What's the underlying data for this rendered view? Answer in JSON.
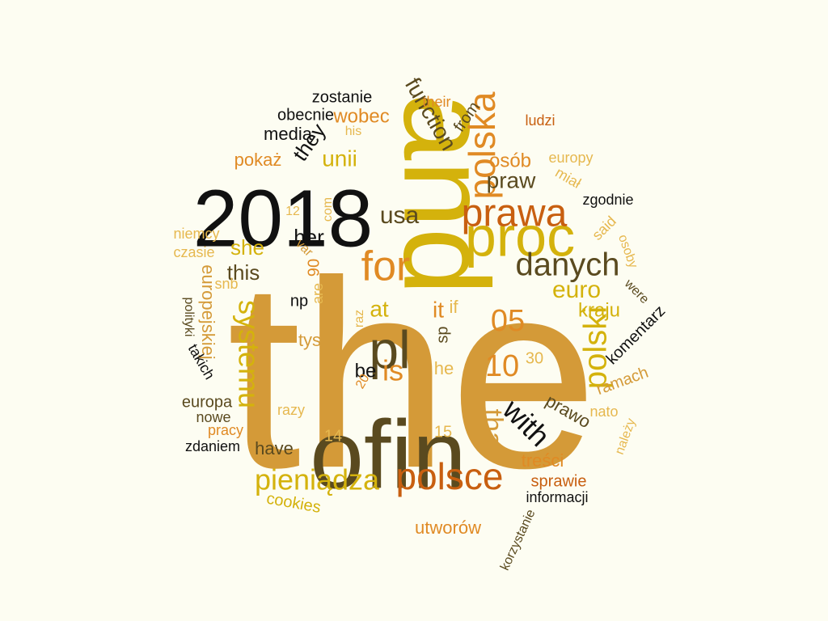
{
  "palette": {
    "background": "#fdfdf2",
    "gold": "#d49a38",
    "olive": "#5a4a1f",
    "mustard": "#d4b20c",
    "orange": "#e08a24",
    "rust": "#c85f10",
    "black": "#111111",
    "light": "#e6b84f"
  },
  "words": [
    "the",
    "and",
    "ofin",
    "2018",
    "proc",
    "pl",
    "prawa",
    "polska",
    "for",
    "danych",
    "polsce",
    "pieniądza",
    "systemu",
    "polski",
    "that",
    "with",
    "is",
    "05",
    "10",
    "euro",
    "kraju",
    "function",
    "praw",
    "usa",
    "unii",
    "osób",
    "they",
    "wobec",
    "zostanie",
    "obecnie",
    "media",
    "their",
    "from",
    "ludzi",
    "his",
    "pokaż",
    "europy",
    "miał",
    "zgodnie",
    "12",
    "her",
    "com",
    "niemcy",
    "czasie",
    "she",
    "var",
    "this",
    "said",
    "europejskiej",
    "osoby",
    "06",
    "snb",
    "are",
    "np",
    "at",
    "it",
    "if",
    "were",
    "polityki",
    "raz",
    "tys",
    "sp",
    "komentarz",
    "30",
    "be",
    "takich",
    "he",
    "20",
    "ramach",
    "europa",
    "razy",
    "nowe",
    "nato",
    "prawo",
    "pracy",
    "15",
    "14",
    "zdaniem",
    "have",
    "należy",
    "treści",
    "sprawie",
    "cookies",
    "informacji",
    "utworów",
    "korzystanie"
  ]
}
